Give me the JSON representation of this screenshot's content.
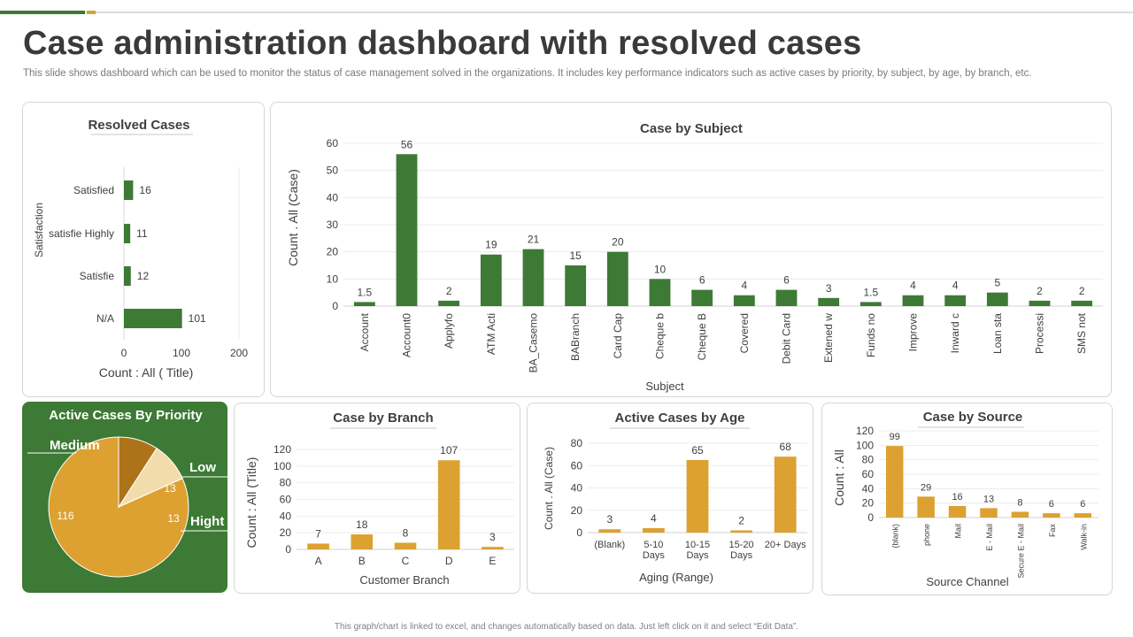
{
  "header": {
    "title": "Case administration dashboard with resolved cases",
    "subtitle": "This slide shows dashboard which can be used to monitor the status of case management solved in the organizations. It includes key performance indicators such as active cases by priority, by subject, by age, by branch, etc."
  },
  "footer": {
    "note": "This graph/chart is linked to excel, and changes automatically based on data. Just left click on it and select “Edit Data”."
  },
  "colors": {
    "green": "#3d7a35",
    "gold": "#dca131",
    "pie_gold": "#dca131",
    "pie_light": "#f3dcac",
    "pie_dark": "#ad7318"
  },
  "chart_data": [
    {
      "id": "resolved",
      "type": "bar",
      "orientation": "horizontal",
      "title": "Resolved Cases",
      "categories": [
        "Satisfied",
        "satisfie Highly",
        "Satisfie",
        "N/A"
      ],
      "values": [
        16,
        11,
        12,
        101
      ],
      "value_labels": [
        "16",
        "11",
        "12",
        "101"
      ],
      "xlabel": "Count : All ( Title)",
      "ylabel": "Satisfaction",
      "xlim": [
        0,
        200
      ],
      "ticks": [
        0,
        100,
        200
      ],
      "tick_labels": [
        "0",
        "100",
        "200"
      ]
    },
    {
      "id": "subject",
      "type": "bar",
      "title": "Case by Subject",
      "categories": [
        "Account",
        "Account0",
        "Applyfo",
        "ATM Acti",
        "BA_Casemo",
        "BABranch",
        "Card Cap",
        "Cheque b",
        "Cheque B",
        "Covered",
        "Debit Card",
        "Extened w",
        "Funds no",
        "Improve",
        "Inward c",
        "Loan sta",
        "Processi",
        "SMS not"
      ],
      "values": [
        1.5,
        56,
        2,
        19,
        21,
        15,
        20,
        10,
        6,
        4,
        6,
        3,
        1.5,
        4,
        4,
        5,
        2,
        2
      ],
      "value_labels": [
        "1.5",
        "56",
        "2",
        "19",
        "21",
        "15",
        "20",
        "10",
        "6",
        "4",
        "6",
        "3",
        "1.5",
        "4",
        "4",
        "5",
        "2",
        "2"
      ],
      "xlabel": "Subject",
      "ylabel": "Count . All (Case)",
      "ylim": [
        0,
        60
      ],
      "ticks": [
        0,
        10,
        20,
        30,
        40,
        50,
        60
      ],
      "tick_labels": [
        "0",
        "10",
        "20",
        "30",
        "40",
        "50",
        "60"
      ],
      "grid": true
    },
    {
      "id": "priority",
      "type": "pie",
      "title": "Active Cases By Priority",
      "labels": [
        "Medium",
        "Low",
        "Hight"
      ],
      "values": [
        116,
        13,
        13
      ],
      "value_labels": [
        "116",
        "13",
        "13"
      ]
    },
    {
      "id": "branch",
      "type": "bar",
      "title": "Case by Branch",
      "categories": [
        "A",
        "B",
        "C",
        "D",
        "E"
      ],
      "values": [
        7,
        18,
        8,
        107,
        3
      ],
      "value_labels": [
        "7",
        "18",
        "8",
        "107",
        "3"
      ],
      "xlabel": "Customer Branch",
      "ylabel": "Count : All (Title)",
      "ylim": [
        0,
        120
      ],
      "ticks": [
        0,
        20,
        40,
        60,
        80,
        100,
        120
      ],
      "tick_labels": [
        "0",
        "20",
        "40",
        "60",
        "80",
        "100",
        "120"
      ],
      "grid": true
    },
    {
      "id": "age",
      "type": "bar",
      "title": "Active Cases by Age",
      "categories": [
        "(Blank)",
        "5-10 Days",
        "10-15 Days",
        "15-20 Days",
        "20+ Days"
      ],
      "values": [
        3,
        4,
        65,
        2,
        68
      ],
      "value_labels": [
        "3",
        "4",
        "65",
        "2",
        "68"
      ],
      "xlabel": "Aging (Range)",
      "ylabel": "Count . All (Case)",
      "ylim": [
        0,
        80
      ],
      "ticks": [
        0,
        20,
        40,
        60,
        80
      ],
      "tick_labels": [
        "0",
        "20",
        "40",
        "60",
        "80"
      ],
      "grid": true
    },
    {
      "id": "source",
      "type": "bar",
      "title": "Case by Source",
      "categories": [
        "(blank)",
        "phone",
        "Mail",
        "E - Mail",
        "Secure E - Mail",
        "Fax",
        "Walk-in"
      ],
      "values": [
        99,
        29,
        16,
        13,
        8,
        6,
        6
      ],
      "value_labels": [
        "99",
        "29",
        "16",
        "13",
        "8",
        "6",
        "6"
      ],
      "xlabel": "Source Channel",
      "ylabel": "Count : All",
      "ylim": [
        0,
        120
      ],
      "ticks": [
        0,
        20,
        40,
        60,
        80,
        100,
        120
      ],
      "tick_labels": [
        "0",
        "20",
        "40",
        "60",
        "80",
        "100",
        "120"
      ],
      "grid": true
    }
  ]
}
